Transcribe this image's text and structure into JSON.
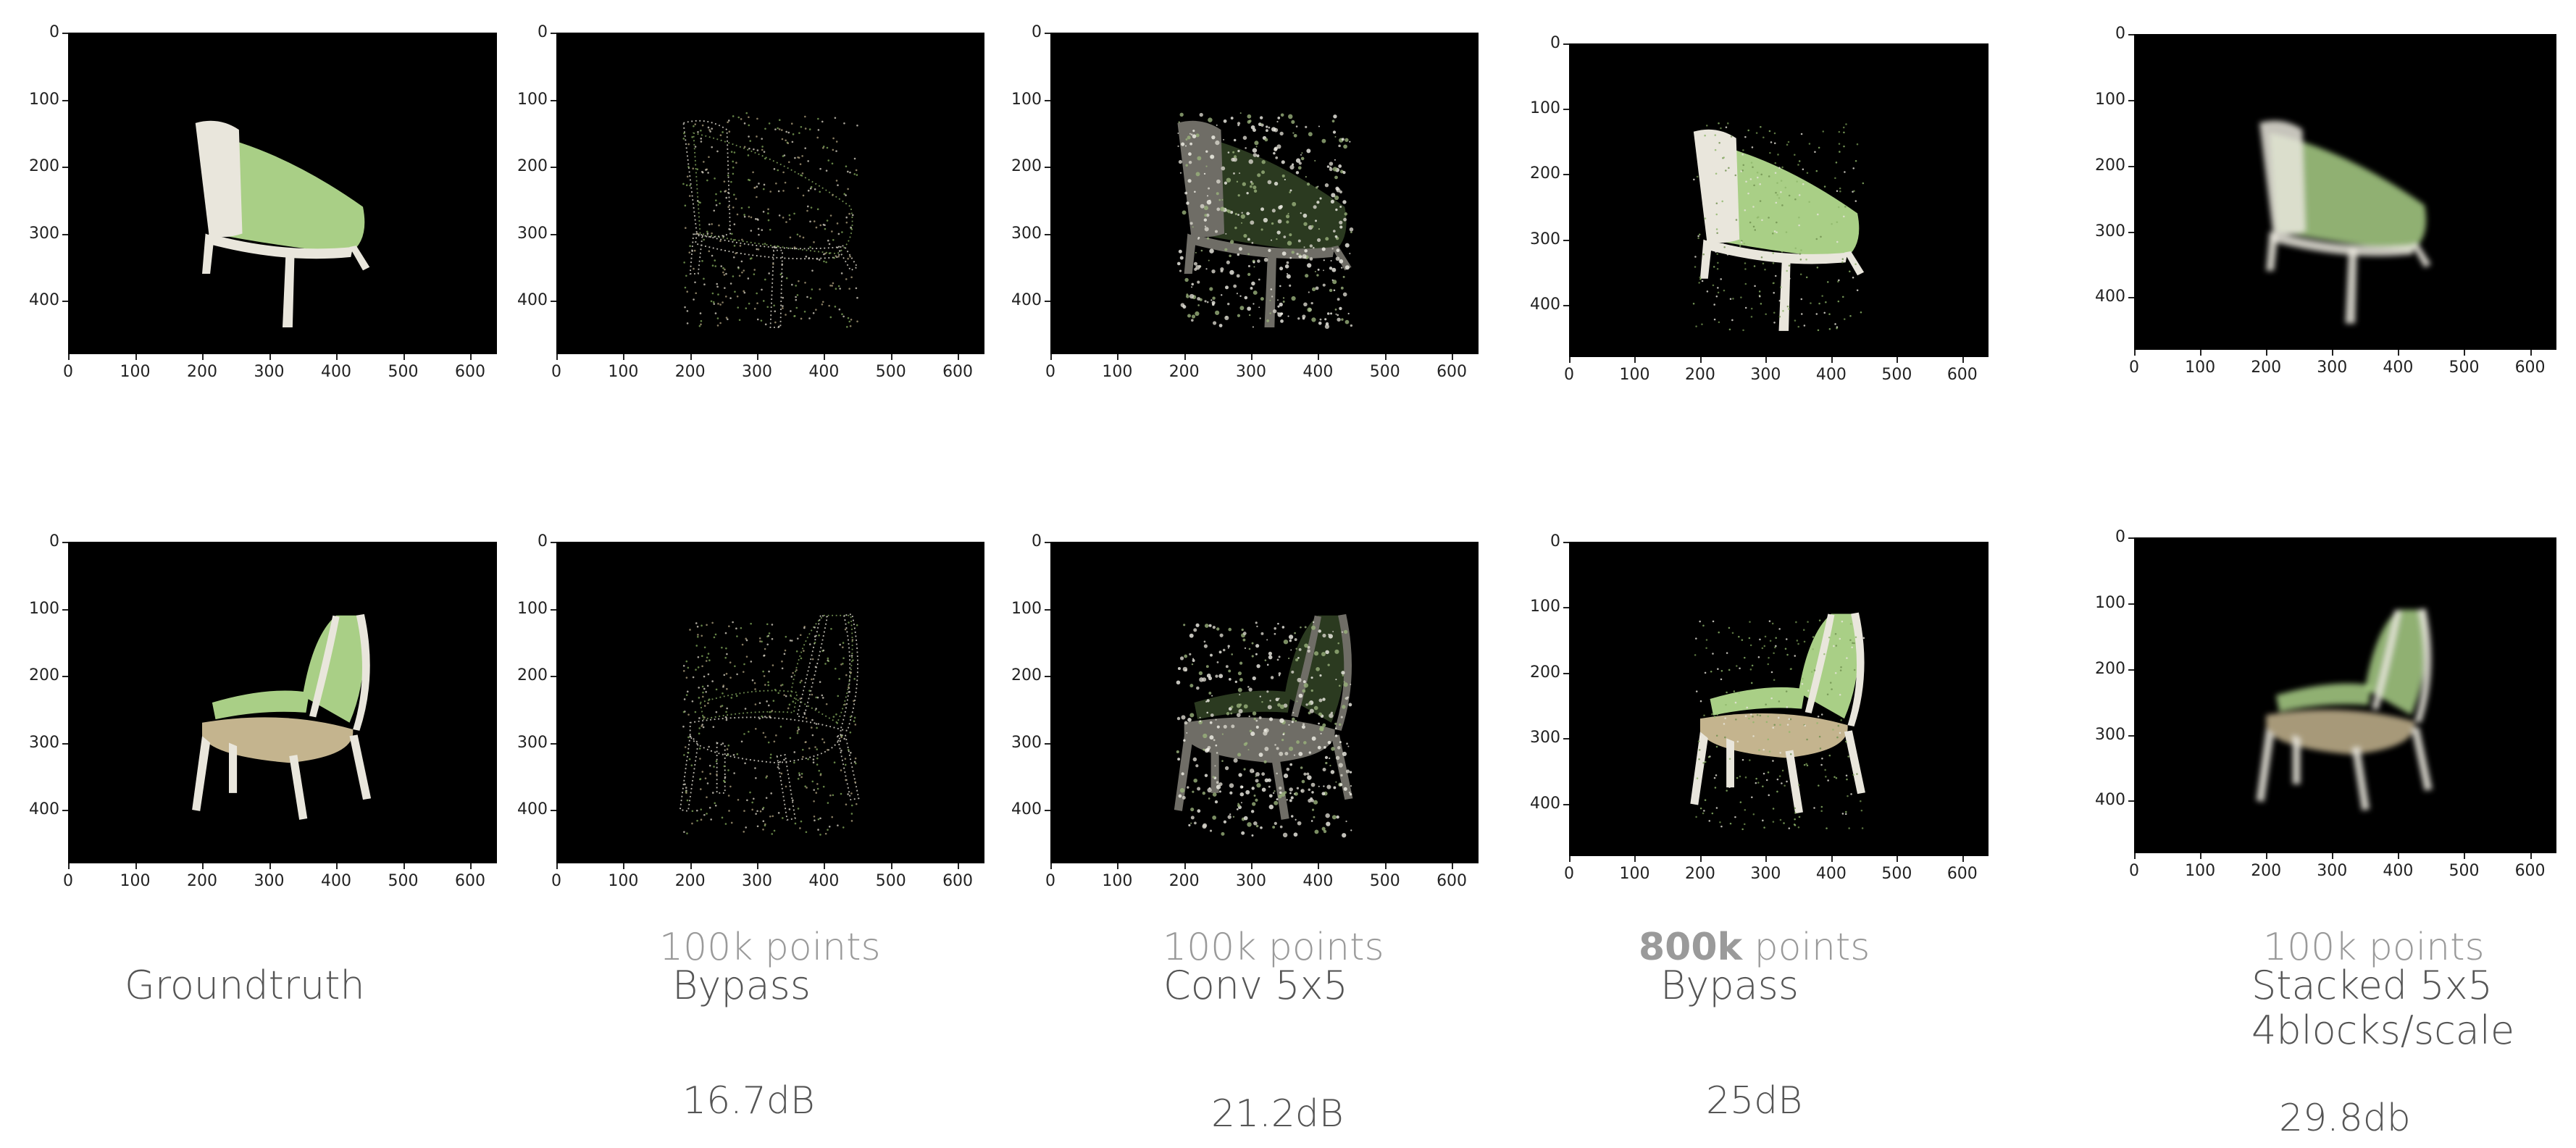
{
  "axes": {
    "x_ticks": [
      "0",
      "100",
      "200",
      "300",
      "400",
      "500",
      "600"
    ],
    "y_ticks": [
      "0",
      "100",
      "200",
      "300",
      "400"
    ],
    "xlim": [
      0,
      640
    ],
    "ylim": [
      0,
      480
    ]
  },
  "colors": {
    "plot_bg": "#000000",
    "caption_gray": "#9a9a9a",
    "caption_dark": "#555555"
  },
  "columns": [
    {
      "method": "Groundtruth",
      "points_bold": "",
      "points_text": "",
      "method_line2": "",
      "db": ""
    },
    {
      "method": "Bypass",
      "points_bold": "",
      "points_text": "100k points",
      "method_line2": "",
      "db": "16.7dB"
    },
    {
      "method": "Conv 5x5",
      "points_bold": "",
      "points_text": "100k points",
      "method_line2": "",
      "db": "21.2dB"
    },
    {
      "method": "Bypass",
      "points_bold": "800k",
      "points_text": " points",
      "method_line2": "",
      "db": "25dB"
    },
    {
      "method": "Stacked 5x5",
      "points_bold": "",
      "points_text": "100k points",
      "method_line2": "4blocks/scale",
      "db": "29.8db"
    }
  ],
  "images": [
    {
      "row": "top",
      "col": 0,
      "style": "groundtruth"
    },
    {
      "row": "top",
      "col": 1,
      "style": "sparse-dots"
    },
    {
      "row": "top",
      "col": 2,
      "style": "white-splats"
    },
    {
      "row": "top",
      "col": 3,
      "style": "dense"
    },
    {
      "row": "top",
      "col": 4,
      "style": "blurry"
    },
    {
      "row": "bottom",
      "col": 0,
      "style": "groundtruth"
    },
    {
      "row": "bottom",
      "col": 1,
      "style": "sparse-dots"
    },
    {
      "row": "bottom",
      "col": 2,
      "style": "white-splats"
    },
    {
      "row": "bottom",
      "col": 3,
      "style": "dense"
    },
    {
      "row": "bottom",
      "col": 4,
      "style": "blurry"
    }
  ]
}
